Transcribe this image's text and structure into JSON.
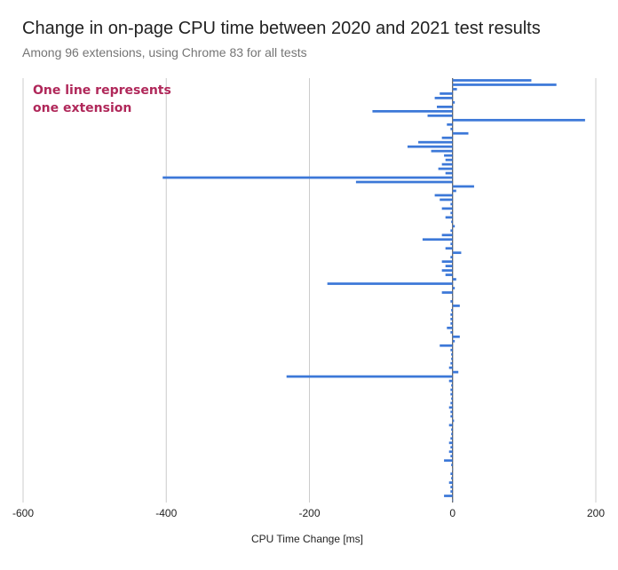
{
  "chart_data": {
    "type": "bar",
    "orientation": "horizontal",
    "title": "Change in on-page CPU time between 2020 and 2021 test results",
    "subtitle": "Among 96 extensions, using Chrome 83 for all tests",
    "annotation": [
      "One line represents",
      "one extension"
    ],
    "xlabel": "CPU Time Change [ms]",
    "xlim": [
      -600,
      200
    ],
    "xticks": [
      -600,
      -400,
      -200,
      0,
      200
    ],
    "xtick_labels": [
      "-600",
      "-400",
      "-200",
      "0",
      "200"
    ],
    "grid": true,
    "bar_color": "#3c78d8",
    "values": [
      110,
      145,
      6,
      -18,
      -25,
      3,
      -22,
      -112,
      -35,
      185,
      -8,
      -3,
      22,
      -15,
      -48,
      -63,
      -30,
      -12,
      -10,
      -15,
      -20,
      -10,
      -405,
      -135,
      30,
      5,
      -25,
      -18,
      -3,
      -15,
      -3,
      -10,
      -2,
      3,
      -3,
      -15,
      -42,
      -3,
      -10,
      12,
      -3,
      -15,
      -10,
      -15,
      -10,
      5,
      -175,
      3,
      -15,
      0,
      -3,
      10,
      -2,
      -3,
      -3,
      -3,
      -8,
      -3,
      10,
      3,
      -18,
      -3,
      -2,
      -2,
      -3,
      -5,
      8,
      -232,
      -5,
      -2,
      -3,
      -3,
      -2,
      -3,
      -5,
      -3,
      -3,
      2,
      -5,
      -2,
      -2,
      -3,
      -5,
      -3,
      -5,
      -3,
      -12,
      -2,
      0,
      -3,
      -2,
      -5,
      -3,
      -3,
      -12,
      0
    ]
  }
}
